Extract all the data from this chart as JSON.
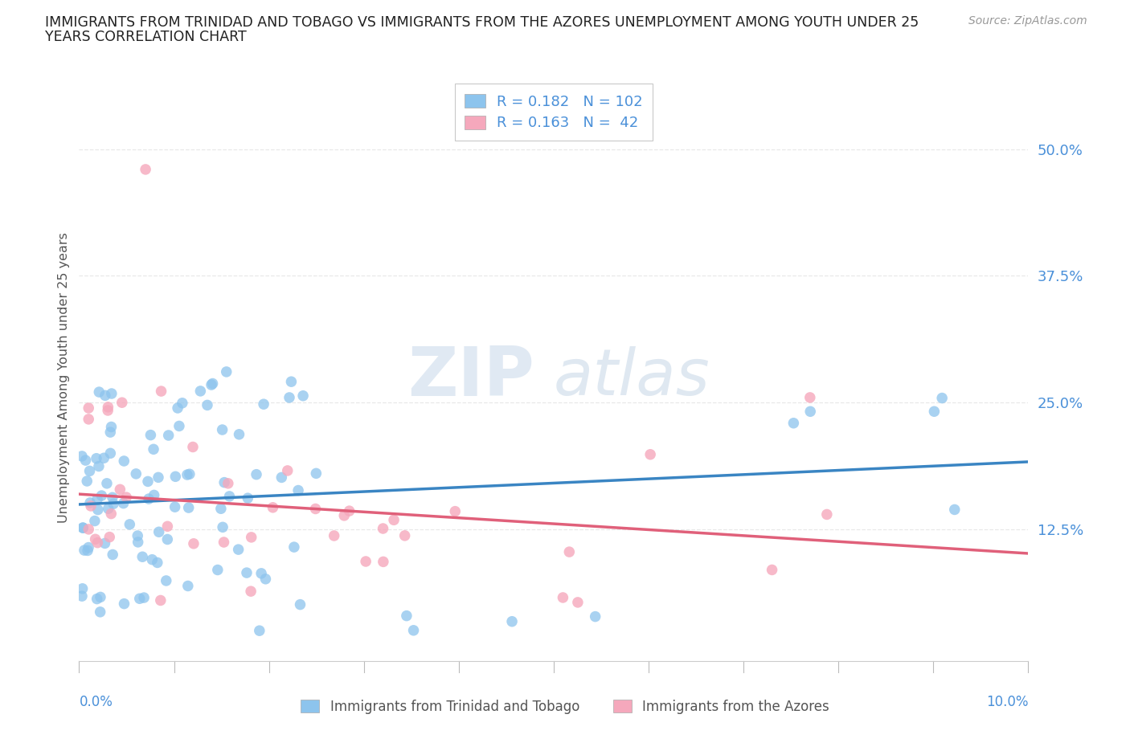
{
  "title_line1": "IMMIGRANTS FROM TRINIDAD AND TOBAGO VS IMMIGRANTS FROM THE AZORES UNEMPLOYMENT AMONG YOUTH UNDER 25",
  "title_line2": "YEARS CORRELATION CHART",
  "source": "Source: ZipAtlas.com",
  "ylabel": "Unemployment Among Youth under 25 years",
  "xlim": [
    0.0,
    0.1
  ],
  "ylim": [
    -0.005,
    0.555
  ],
  "ytick_vals": [
    0.125,
    0.25,
    0.375,
    0.5
  ],
  "ytick_labels": [
    "12.5%",
    "25.0%",
    "37.5%",
    "50.0%"
  ],
  "series1_name": "Immigrants from Trinidad and Tobago",
  "series1_color": "#8DC4ED",
  "series1_line_color": "#3A85C3",
  "series1_R": 0.182,
  "series1_N": 102,
  "series2_name": "Immigrants from the Azores",
  "series2_color": "#F5A8BC",
  "series2_line_color": "#E0607A",
  "series2_R": 0.163,
  "series2_N": 42,
  "tick_color": "#4A90D9",
  "background_color": "#ffffff",
  "grid_color": "#e8e8e8",
  "watermark_zip_color": "#d0dce8",
  "watermark_atlas_color": "#c8d8e8"
}
